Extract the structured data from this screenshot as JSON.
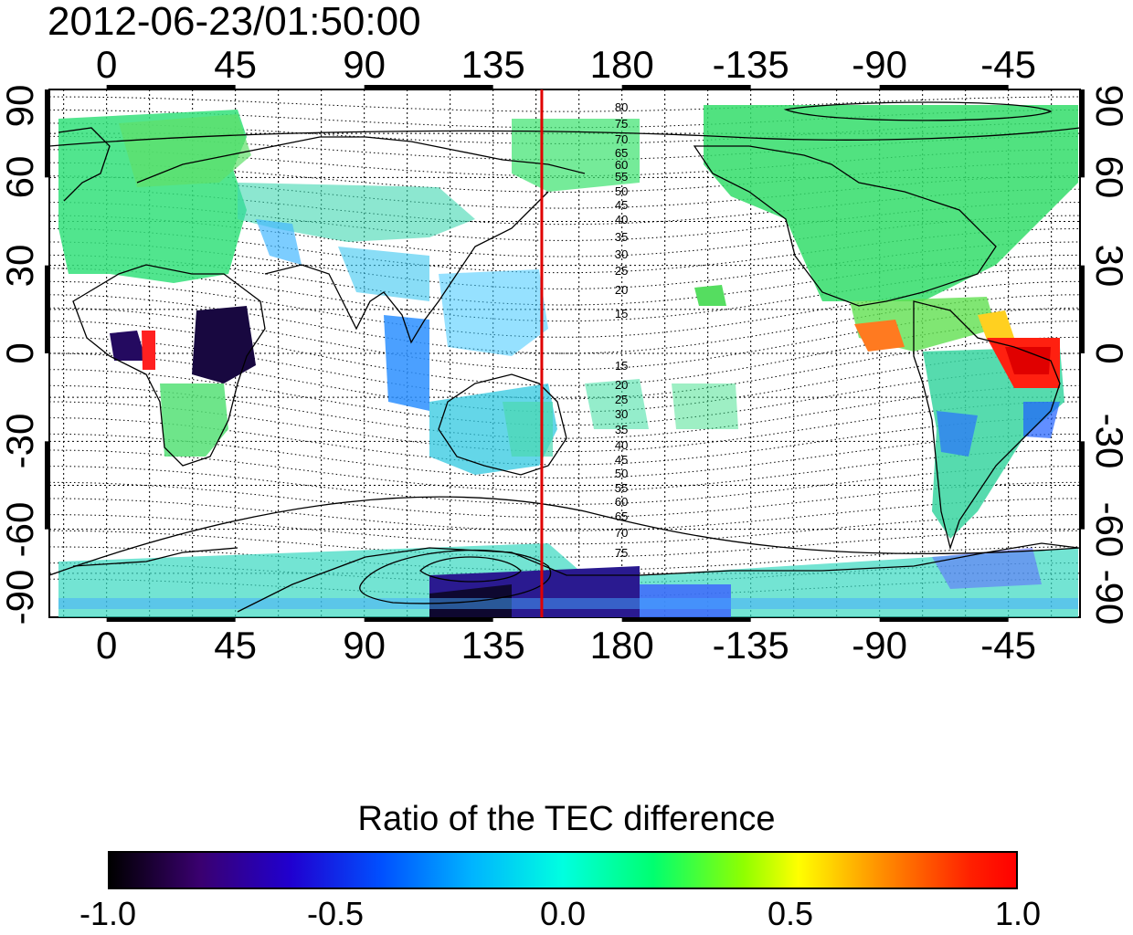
{
  "title": "2012-06-23/01:50:00",
  "map": {
    "lon_ticks": [
      "0",
      "45",
      "90",
      "135",
      "180",
      "-135",
      "-90",
      "-45"
    ],
    "lat_ticks": [
      "90",
      "60",
      "30",
      "0",
      "-30",
      "-60",
      "-90"
    ],
    "meridian_marker_lon": 152,
    "marker_color": "#e00000",
    "mlat_labels_north": [
      "80",
      "75",
      "70",
      "65",
      "60",
      "55",
      "50",
      "45",
      "40",
      "35",
      "30",
      "25",
      "20",
      "15"
    ],
    "mlat_labels_south": [
      "15",
      "20",
      "25",
      "30",
      "35",
      "40",
      "45",
      "50",
      "55",
      "60",
      "65",
      "70",
      "75"
    ]
  },
  "colorbar": {
    "title": "Ratio of the TEC difference",
    "ticks": [
      "-1.0",
      "-0.5",
      "0.0",
      "0.5",
      "1.0"
    ],
    "range": [
      -1.0,
      1.0
    ]
  }
}
